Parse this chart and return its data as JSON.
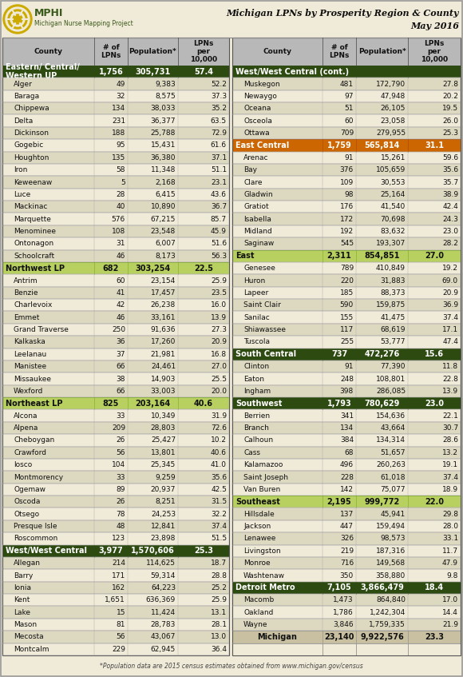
{
  "title_line1": "Michigan LPNs by Prosperity Region & County",
  "title_line2": "May 2016",
  "footnote": "*Population data are 2015 census estimates obtained from www.michigan.gov/census",
  "bg_color": "#f0ead8",
  "header_bg": "#b8b8b8",
  "dark_green": "#2d4a10",
  "light_green": "#b8d060",
  "orange_col": "#cc6600",
  "row_light": "#f0ead8",
  "row_dark": "#ddd8c0",
  "michigan_bg": "#c8c0a0",
  "logo_gold": "#ccaa00",
  "logo_text_color": "#3a5a1a",
  "title_color": "#1a1a1a",
  "left_col": [
    {
      "type": "region",
      "name": "Eastern/ Central/\nWestern UP",
      "lpns": "1,756",
      "pop": "305,731",
      "per10k": "57.4",
      "color": "dark_green"
    },
    {
      "type": "county",
      "name": "Alger",
      "lpns": "49",
      "pop": "9,383",
      "per10k": "52.2"
    },
    {
      "type": "county",
      "name": "Baraga",
      "lpns": "32",
      "pop": "8,575",
      "per10k": "37.3"
    },
    {
      "type": "county",
      "name": "Chippewa",
      "lpns": "134",
      "pop": "38,033",
      "per10k": "35.2"
    },
    {
      "type": "county",
      "name": "Delta",
      "lpns": "231",
      "pop": "36,377",
      "per10k": "63.5"
    },
    {
      "type": "county",
      "name": "Dickinson",
      "lpns": "188",
      "pop": "25,788",
      "per10k": "72.9"
    },
    {
      "type": "county",
      "name": "Gogebic",
      "lpns": "95",
      "pop": "15,431",
      "per10k": "61.6"
    },
    {
      "type": "county",
      "name": "Houghton",
      "lpns": "135",
      "pop": "36,380",
      "per10k": "37.1"
    },
    {
      "type": "county",
      "name": "Iron",
      "lpns": "58",
      "pop": "11,348",
      "per10k": "51.1"
    },
    {
      "type": "county",
      "name": "Keweenaw",
      "lpns": "5",
      "pop": "2,168",
      "per10k": "23.1"
    },
    {
      "type": "county",
      "name": "Luce",
      "lpns": "28",
      "pop": "6,415",
      "per10k": "43.6"
    },
    {
      "type": "county",
      "name": "Mackinac",
      "lpns": "40",
      "pop": "10,890",
      "per10k": "36.7"
    },
    {
      "type": "county",
      "name": "Marquette",
      "lpns": "576",
      "pop": "67,215",
      "per10k": "85.7"
    },
    {
      "type": "county",
      "name": "Menominee",
      "lpns": "108",
      "pop": "23,548",
      "per10k": "45.9"
    },
    {
      "type": "county",
      "name": "Ontonagon",
      "lpns": "31",
      "pop": "6,007",
      "per10k": "51.6"
    },
    {
      "type": "county",
      "name": "Schoolcraft",
      "lpns": "46",
      "pop": "8,173",
      "per10k": "56.3"
    },
    {
      "type": "region",
      "name": "Northwest LP",
      "lpns": "682",
      "pop": "303,254",
      "per10k": "22.5",
      "color": "light_green"
    },
    {
      "type": "county",
      "name": "Antrim",
      "lpns": "60",
      "pop": "23,154",
      "per10k": "25.9"
    },
    {
      "type": "county",
      "name": "Benzie",
      "lpns": "41",
      "pop": "17,457",
      "per10k": "23.5"
    },
    {
      "type": "county",
      "name": "Charlevoix",
      "lpns": "42",
      "pop": "26,238",
      "per10k": "16.0"
    },
    {
      "type": "county",
      "name": "Emmet",
      "lpns": "46",
      "pop": "33,161",
      "per10k": "13.9"
    },
    {
      "type": "county",
      "name": "Grand Traverse",
      "lpns": "250",
      "pop": "91,636",
      "per10k": "27.3"
    },
    {
      "type": "county",
      "name": "Kalkaska",
      "lpns": "36",
      "pop": "17,260",
      "per10k": "20.9"
    },
    {
      "type": "county",
      "name": "Leelanau",
      "lpns": "37",
      "pop": "21,981",
      "per10k": "16.8"
    },
    {
      "type": "county",
      "name": "Manistee",
      "lpns": "66",
      "pop": "24,461",
      "per10k": "27.0"
    },
    {
      "type": "county",
      "name": "Missaukee",
      "lpns": "38",
      "pop": "14,903",
      "per10k": "25.5"
    },
    {
      "type": "county",
      "name": "Wexford",
      "lpns": "66",
      "pop": "33,003",
      "per10k": "20.0"
    },
    {
      "type": "region",
      "name": "Northeast LP",
      "lpns": "825",
      "pop": "203,164",
      "per10k": "40.6",
      "color": "light_green"
    },
    {
      "type": "county",
      "name": "Alcona",
      "lpns": "33",
      "pop": "10,349",
      "per10k": "31.9"
    },
    {
      "type": "county",
      "name": "Alpena",
      "lpns": "209",
      "pop": "28,803",
      "per10k": "72.6"
    },
    {
      "type": "county",
      "name": "Cheboygan",
      "lpns": "26",
      "pop": "25,427",
      "per10k": "10.2"
    },
    {
      "type": "county",
      "name": "Crawford",
      "lpns": "56",
      "pop": "13,801",
      "per10k": "40.6"
    },
    {
      "type": "county",
      "name": "Iosco",
      "lpns": "104",
      "pop": "25,345",
      "per10k": "41.0"
    },
    {
      "type": "county",
      "name": "Montmorency",
      "lpns": "33",
      "pop": "9,259",
      "per10k": "35.6"
    },
    {
      "type": "county",
      "name": "Ogemaw",
      "lpns": "89",
      "pop": "20,937",
      "per10k": "42.5"
    },
    {
      "type": "county",
      "name": "Oscoda",
      "lpns": "26",
      "pop": "8,251",
      "per10k": "31.5"
    },
    {
      "type": "county",
      "name": "Otsego",
      "lpns": "78",
      "pop": "24,253",
      "per10k": "32.2"
    },
    {
      "type": "county",
      "name": "Presque Isle",
      "lpns": "48",
      "pop": "12,841",
      "per10k": "37.4"
    },
    {
      "type": "county",
      "name": "Roscommon",
      "lpns": "123",
      "pop": "23,898",
      "per10k": "51.5"
    },
    {
      "type": "region",
      "name": "West/West Central",
      "lpns": "3,977",
      "pop": "1,570,606",
      "per10k": "25.3",
      "color": "dark_green"
    },
    {
      "type": "county",
      "name": "Allegan",
      "lpns": "214",
      "pop": "114,625",
      "per10k": "18.7"
    },
    {
      "type": "county",
      "name": "Barry",
      "lpns": "171",
      "pop": "59,314",
      "per10k": "28.8"
    },
    {
      "type": "county",
      "name": "Ionia",
      "lpns": "162",
      "pop": "64,223",
      "per10k": "25.2"
    },
    {
      "type": "county",
      "name": "Kent",
      "lpns": "1,651",
      "pop": "636,369",
      "per10k": "25.9"
    },
    {
      "type": "county",
      "name": "Lake",
      "lpns": "15",
      "pop": "11,424",
      "per10k": "13.1"
    },
    {
      "type": "county",
      "name": "Mason",
      "lpns": "81",
      "pop": "28,783",
      "per10k": "28.1"
    },
    {
      "type": "county",
      "name": "Mecosta",
      "lpns": "56",
      "pop": "43,067",
      "per10k": "13.0"
    },
    {
      "type": "county",
      "name": "Montcalm",
      "lpns": "229",
      "pop": "62,945",
      "per10k": "36.4"
    }
  ],
  "right_col": [
    {
      "type": "region_cont",
      "name": "West/West Central (cont.)",
      "color": "dark_green"
    },
    {
      "type": "county",
      "name": "Muskegon",
      "lpns": "481",
      "pop": "172,790",
      "per10k": "27.8"
    },
    {
      "type": "county",
      "name": "Newaygo",
      "lpns": "97",
      "pop": "47,948",
      "per10k": "20.2"
    },
    {
      "type": "county",
      "name": "Oceana",
      "lpns": "51",
      "pop": "26,105",
      "per10k": "19.5"
    },
    {
      "type": "county",
      "name": "Osceola",
      "lpns": "60",
      "pop": "23,058",
      "per10k": "26.0"
    },
    {
      "type": "county",
      "name": "Ottawa",
      "lpns": "709",
      "pop": "279,955",
      "per10k": "25.3"
    },
    {
      "type": "region",
      "name": "East Central",
      "lpns": "1,759",
      "pop": "565,814",
      "per10k": "31.1",
      "color": "orange"
    },
    {
      "type": "county",
      "name": "Arenac",
      "lpns": "91",
      "pop": "15,261",
      "per10k": "59.6"
    },
    {
      "type": "county",
      "name": "Bay",
      "lpns": "376",
      "pop": "105,659",
      "per10k": "35.6"
    },
    {
      "type": "county",
      "name": "Clare",
      "lpns": "109",
      "pop": "30,553",
      "per10k": "35.7"
    },
    {
      "type": "county",
      "name": "Gladwin",
      "lpns": "98",
      "pop": "25,164",
      "per10k": "38.9"
    },
    {
      "type": "county",
      "name": "Gratiot",
      "lpns": "176",
      "pop": "41,540",
      "per10k": "42.4"
    },
    {
      "type": "county",
      "name": "Isabella",
      "lpns": "172",
      "pop": "70,698",
      "per10k": "24.3"
    },
    {
      "type": "county",
      "name": "Midland",
      "lpns": "192",
      "pop": "83,632",
      "per10k": "23.0"
    },
    {
      "type": "county",
      "name": "Saginaw",
      "lpns": "545",
      "pop": "193,307",
      "per10k": "28.2"
    },
    {
      "type": "region",
      "name": "East",
      "lpns": "2,311",
      "pop": "854,851",
      "per10k": "27.0",
      "color": "light_green"
    },
    {
      "type": "county",
      "name": "Genesee",
      "lpns": "789",
      "pop": "410,849",
      "per10k": "19.2"
    },
    {
      "type": "county",
      "name": "Huron",
      "lpns": "220",
      "pop": "31,883",
      "per10k": "69.0"
    },
    {
      "type": "county",
      "name": "Lapeer",
      "lpns": "185",
      "pop": "88,373",
      "per10k": "20.9"
    },
    {
      "type": "county",
      "name": "Saint Clair",
      "lpns": "590",
      "pop": "159,875",
      "per10k": "36.9"
    },
    {
      "type": "county",
      "name": "Sanilac",
      "lpns": "155",
      "pop": "41,475",
      "per10k": "37.4"
    },
    {
      "type": "county",
      "name": "Shiawassee",
      "lpns": "117",
      "pop": "68,619",
      "per10k": "17.1"
    },
    {
      "type": "county",
      "name": "Tuscola",
      "lpns": "255",
      "pop": "53,777",
      "per10k": "47.4"
    },
    {
      "type": "region",
      "name": "South Central",
      "lpns": "737",
      "pop": "472,276",
      "per10k": "15.6",
      "color": "dark_green"
    },
    {
      "type": "county",
      "name": "Clinton",
      "lpns": "91",
      "pop": "77,390",
      "per10k": "11.8"
    },
    {
      "type": "county",
      "name": "Eaton",
      "lpns": "248",
      "pop": "108,801",
      "per10k": "22.8"
    },
    {
      "type": "county",
      "name": "Ingham",
      "lpns": "398",
      "pop": "286,085",
      "per10k": "13.9"
    },
    {
      "type": "region",
      "name": "Southwest",
      "lpns": "1,793",
      "pop": "780,629",
      "per10k": "23.0",
      "color": "dark_green"
    },
    {
      "type": "county",
      "name": "Berrien",
      "lpns": "341",
      "pop": "154,636",
      "per10k": "22.1"
    },
    {
      "type": "county",
      "name": "Branch",
      "lpns": "134",
      "pop": "43,664",
      "per10k": "30.7"
    },
    {
      "type": "county",
      "name": "Calhoun",
      "lpns": "384",
      "pop": "134,314",
      "per10k": "28.6"
    },
    {
      "type": "county",
      "name": "Cass",
      "lpns": "68",
      "pop": "51,657",
      "per10k": "13.2"
    },
    {
      "type": "county",
      "name": "Kalamazoo",
      "lpns": "496",
      "pop": "260,263",
      "per10k": "19.1"
    },
    {
      "type": "county",
      "name": "Saint Joseph",
      "lpns": "228",
      "pop": "61,018",
      "per10k": "37.4"
    },
    {
      "type": "county",
      "name": "Van Buren",
      "lpns": "142",
      "pop": "75,077",
      "per10k": "18.9"
    },
    {
      "type": "region",
      "name": "Southeast",
      "lpns": "2,195",
      "pop": "999,772",
      "per10k": "22.0",
      "color": "light_green"
    },
    {
      "type": "county",
      "name": "Hillsdale",
      "lpns": "137",
      "pop": "45,941",
      "per10k": "29.8"
    },
    {
      "type": "county",
      "name": "Jackson",
      "lpns": "447",
      "pop": "159,494",
      "per10k": "28.0"
    },
    {
      "type": "county",
      "name": "Lenawee",
      "lpns": "326",
      "pop": "98,573",
      "per10k": "33.1"
    },
    {
      "type": "county",
      "name": "Livingston",
      "lpns": "219",
      "pop": "187,316",
      "per10k": "11.7"
    },
    {
      "type": "county",
      "name": "Monroe",
      "lpns": "716",
      "pop": "149,568",
      "per10k": "47.9"
    },
    {
      "type": "county",
      "name": "Washtenaw",
      "lpns": "350",
      "pop": "358,880",
      "per10k": "9.8"
    },
    {
      "type": "region",
      "name": "Detroit Metro",
      "lpns": "7,105",
      "pop": "3,866,479",
      "per10k": "18.4",
      "color": "dark_green"
    },
    {
      "type": "county",
      "name": "Macomb",
      "lpns": "1,473",
      "pop": "864,840",
      "per10k": "17.0"
    },
    {
      "type": "county",
      "name": "Oakland",
      "lpns": "1,786",
      "pop": "1,242,304",
      "per10k": "14.4"
    },
    {
      "type": "county",
      "name": "Wayne",
      "lpns": "3,846",
      "pop": "1,759,335",
      "per10k": "21.9"
    },
    {
      "type": "michigan",
      "name": "Michigan",
      "lpns": "23,140",
      "pop": "9,922,576",
      "per10k": "23.3"
    }
  ]
}
